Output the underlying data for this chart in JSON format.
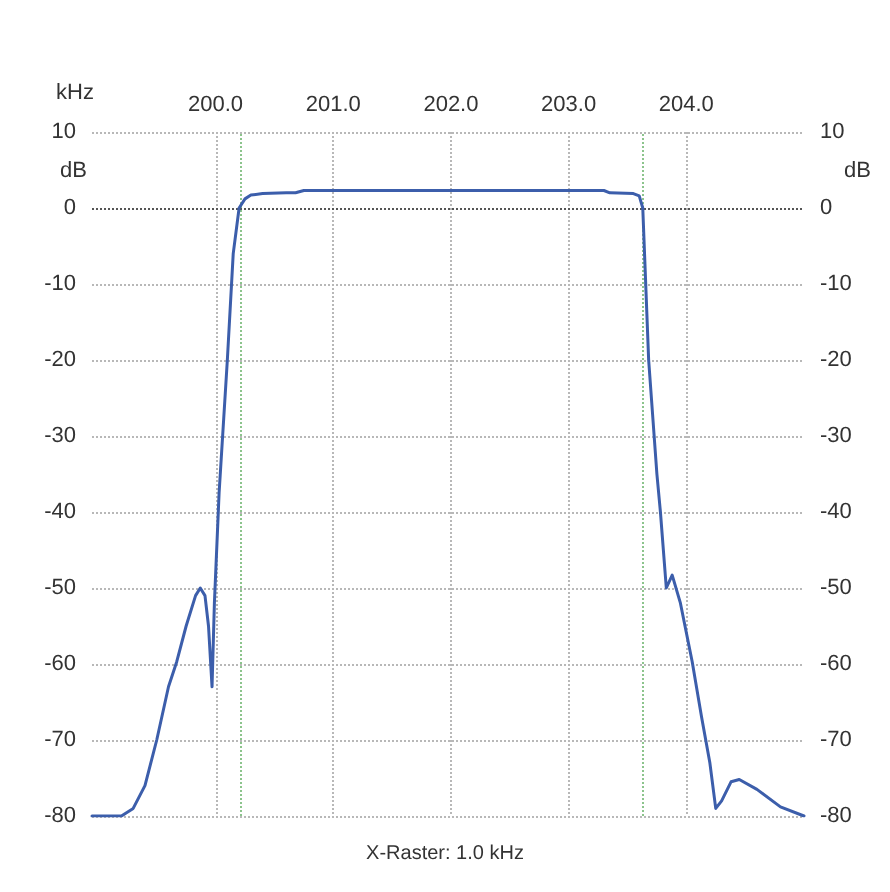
{
  "chart_data": {
    "type": "line",
    "xlabel": "kHz",
    "ylabel": "dB",
    "y2label": "dB",
    "x": [
      198.95,
      199.2,
      199.3,
      199.4,
      199.5,
      199.6,
      199.67,
      199.75,
      199.83,
      199.87,
      199.91,
      199.94,
      199.97,
      199.99,
      200.03,
      200.1,
      200.15,
      200.2,
      200.25,
      200.3,
      200.4,
      200.6,
      200.68,
      200.75,
      201.5,
      202.5,
      203.3,
      203.35,
      203.55,
      203.6,
      203.63,
      203.68,
      203.75,
      203.78,
      203.83,
      203.88,
      203.95,
      204.05,
      204.13,
      204.2,
      204.25,
      204.3,
      204.38,
      204.45,
      204.6,
      204.8,
      205.0
    ],
    "series": [
      {
        "color": "#3c5eab",
        "values": [
          -80,
          -80,
          -79,
          -76,
          -70,
          -63,
          -59.7,
          -55,
          -51,
          -50,
          -51,
          -55,
          -63,
          -52,
          -37.5,
          -20,
          -6,
          0,
          1.2,
          1.7,
          1.9,
          2,
          2,
          2.3,
          2.3,
          2.3,
          2.3,
          2,
          1.9,
          1.6,
          0,
          -20,
          -35,
          -40,
          -50,
          -48.3,
          -52,
          -59.7,
          -67,
          -73,
          -79,
          -78,
          -75.5,
          -75.2,
          -76.5,
          -78.8,
          -80
        ]
      }
    ],
    "xlim": [
      198.95,
      205.0
    ],
    "xticks": [
      {
        "value": 200,
        "label": "200.0"
      },
      {
        "value": 201,
        "label": "201.0"
      },
      {
        "value": 202,
        "label": "202.0"
      },
      {
        "value": 203,
        "label": "203.0"
      },
      {
        "value": 204,
        "label": "204.0"
      }
    ],
    "ylim": [
      -80,
      10
    ],
    "yticks": [
      10,
      0,
      -10,
      -20,
      -30,
      -40,
      -50,
      -60,
      -70,
      -80
    ],
    "y2lim": [
      -80,
      10
    ],
    "y2ticks": [
      10,
      0,
      -10,
      -20,
      -30,
      -40,
      -50,
      -60,
      -70,
      -80
    ],
    "grid": true,
    "marker": "none",
    "line_style": "solid",
    "ref_lines": [
      {
        "axis": "y",
        "value": 0,
        "color": "#555555",
        "line_style": "dotted"
      },
      {
        "axis": "x",
        "value": 200.22,
        "color": "#8cc48c",
        "line_style": "dotted"
      },
      {
        "axis": "x",
        "value": 203.63,
        "color": "#8cc48c",
        "line_style": "dotted"
      }
    ],
    "annotations": [
      "X-Raster: 1.0 kHz"
    ]
  }
}
